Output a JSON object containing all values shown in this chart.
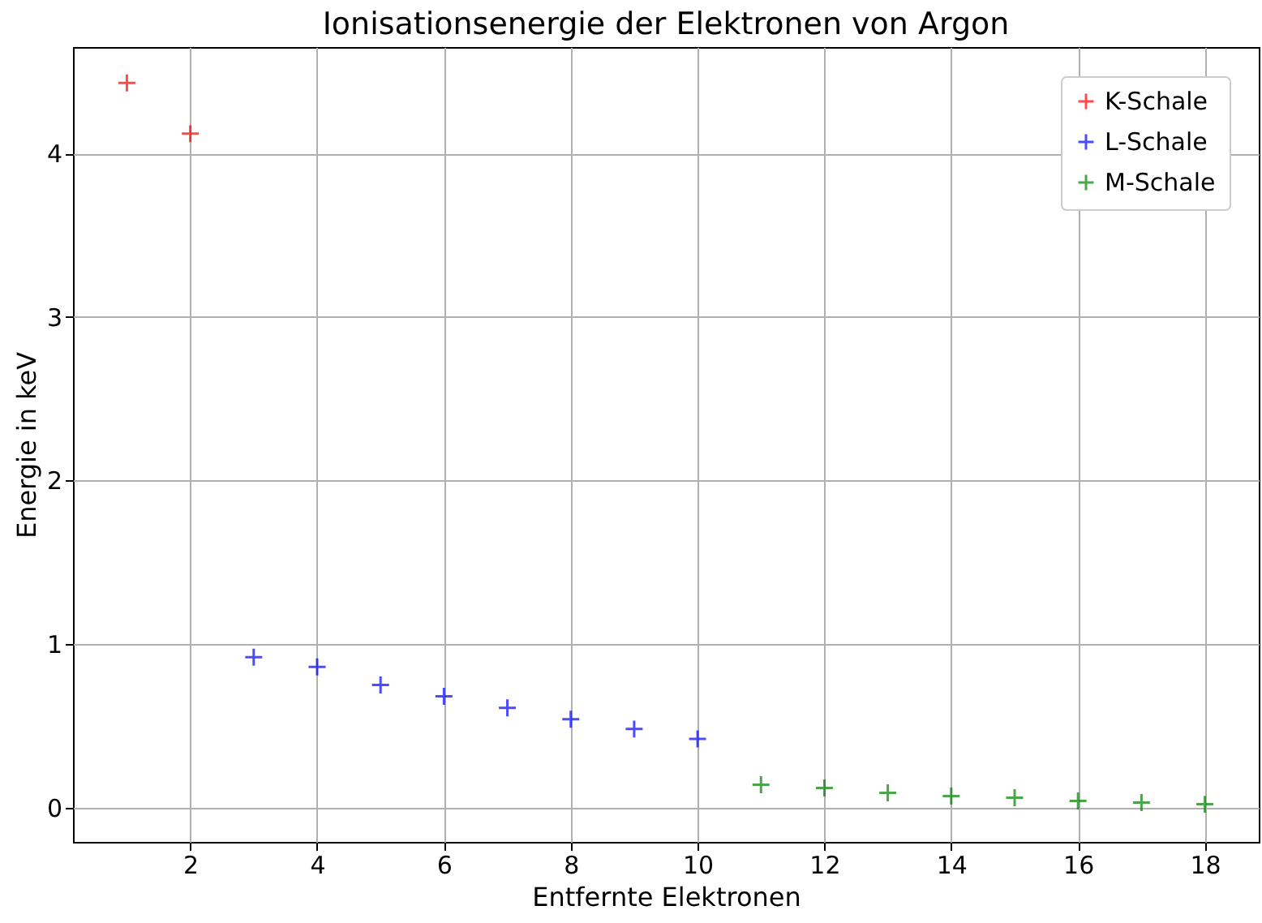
{
  "chart_data": {
    "type": "scatter",
    "title": "Ionisationsenergie der Elektronen von Argon",
    "xlabel": "Entfernte Elektronen",
    "ylabel": "Energie in keV",
    "xlim": [
      0.15,
      18.85
    ],
    "xticks": [
      2,
      4,
      6,
      8,
      10,
      12,
      14,
      16,
      18
    ],
    "ylim": [
      -0.21,
      4.65
    ],
    "yticks": [
      0,
      1,
      2,
      3,
      4
    ],
    "grid": true,
    "legend": "top right",
    "marker": "cross",
    "series": [
      {
        "name": "K-Schale",
        "color": "#ff0000",
        "x": [
          1,
          2
        ],
        "values": [
          4.43,
          4.12
        ]
      },
      {
        "name": "L-Schale",
        "color": "#0000ff",
        "x": [
          3,
          4,
          5,
          6,
          7,
          8,
          9,
          10
        ],
        "values": [
          0.92,
          0.86,
          0.75,
          0.68,
          0.61,
          0.54,
          0.48,
          0.42
        ]
      },
      {
        "name": "M-Schale",
        "color": "#008000",
        "x": [
          11,
          12,
          13,
          14,
          15,
          16,
          17,
          18
        ],
        "values": [
          0.14,
          0.12,
          0.09,
          0.07,
          0.06,
          0.04,
          0.03,
          0.02
        ]
      }
    ]
  }
}
